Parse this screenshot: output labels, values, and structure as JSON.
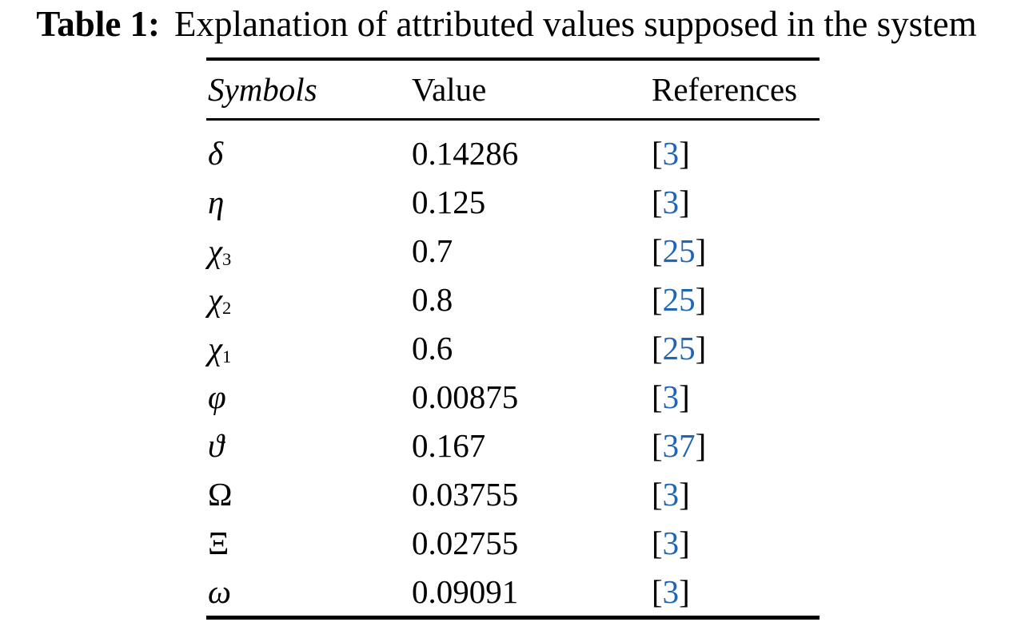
{
  "caption": {
    "label": "Table 1:",
    "text": "Explanation of attributed values supposed in the system"
  },
  "table": {
    "headers": [
      "Symbols",
      "Value",
      "References"
    ],
    "bracket_open": "[",
    "bracket_close": "]",
    "rows": [
      {
        "symbol": "δ",
        "sub": "",
        "style": "italic",
        "value": "0.14286",
        "ref": "3"
      },
      {
        "symbol": "η",
        "sub": "",
        "style": "italic",
        "value": "0.125",
        "ref": "3"
      },
      {
        "symbol": "χ",
        "sub": "3",
        "style": "italic",
        "value": "0.7",
        "ref": "25"
      },
      {
        "symbol": "χ",
        "sub": "2",
        "style": "italic",
        "value": "0.8",
        "ref": "25"
      },
      {
        "symbol": "χ",
        "sub": "1",
        "style": "italic",
        "value": "0.6",
        "ref": "25"
      },
      {
        "symbol": "φ",
        "sub": "",
        "style": "italic",
        "value": "0.00875",
        "ref": "3"
      },
      {
        "symbol": "ϑ",
        "sub": "",
        "style": "italic",
        "value": "0.167",
        "ref": "37"
      },
      {
        "symbol": "Ω",
        "sub": "",
        "style": "upright",
        "value": "0.03755",
        "ref": "3"
      },
      {
        "symbol": "Ξ",
        "sub": "",
        "style": "upright",
        "value": "0.02755",
        "ref": "3"
      },
      {
        "symbol": "ω",
        "sub": "",
        "style": "italic",
        "value": "0.09091",
        "ref": "3"
      }
    ],
    "colors": {
      "reference_link": "#2166b4",
      "text": "#000000",
      "rule": "#000000"
    }
  }
}
